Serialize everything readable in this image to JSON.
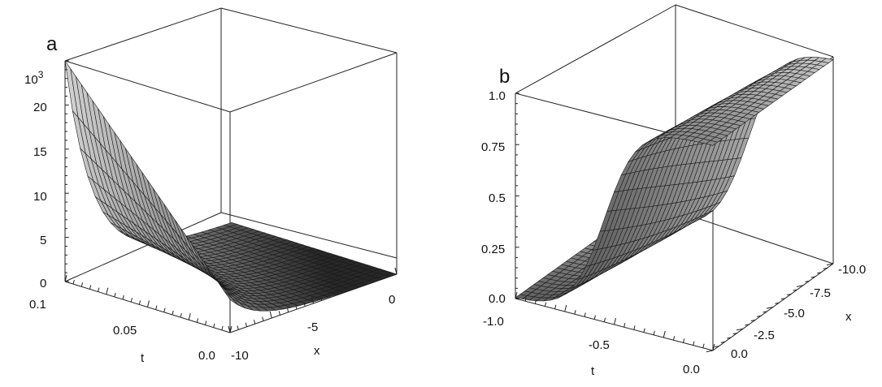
{
  "chart_data": [
    {
      "panel_label": "a",
      "type": "surface",
      "axes": {
        "t": {
          "label": "t",
          "range": [
            0.0,
            0.1
          ],
          "ticks": [
            "0.1",
            "0.05",
            "0.0"
          ]
        },
        "x": {
          "label": "x",
          "range": [
            -10,
            0
          ],
          "ticks": [
            "-10",
            "-5",
            "0"
          ]
        },
        "z": {
          "label": "",
          "range": [
            0,
            23
          ],
          "ticks": [
            "0",
            "5",
            "10",
            "15",
            "20"
          ],
          "multiplier": "10³",
          "multiplier_base": "10",
          "multiplier_exp": "3"
        }
      },
      "surface_model": "exponential growth toward large t and small x; ~23×10³ at (t=0.1, x=-10), ~0 near x=0",
      "color": "#909090"
    },
    {
      "panel_label": "b",
      "type": "surface",
      "axes": {
        "t": {
          "label": "t",
          "range": [
            -1.0,
            0.0
          ],
          "ticks": [
            "-1.0",
            "-0.5",
            "0.0"
          ]
        },
        "x": {
          "label": "x",
          "range": [
            -10.0,
            0.0
          ],
          "ticks": [
            "0.0",
            "-2.5",
            "-5.0",
            "-7.5",
            "-10.0"
          ]
        },
        "z": {
          "label": "",
          "range": [
            0.0,
            1.0
          ],
          "ticks": [
            "0.0",
            "0.25",
            "0.5",
            "0.75",
            "1.0"
          ]
        }
      },
      "surface_model": "kink (tanh-type) front: 0 at t=-1, rising steeply to 1 around t≈-0.4, plateau at 1",
      "color": "#909090"
    }
  ]
}
